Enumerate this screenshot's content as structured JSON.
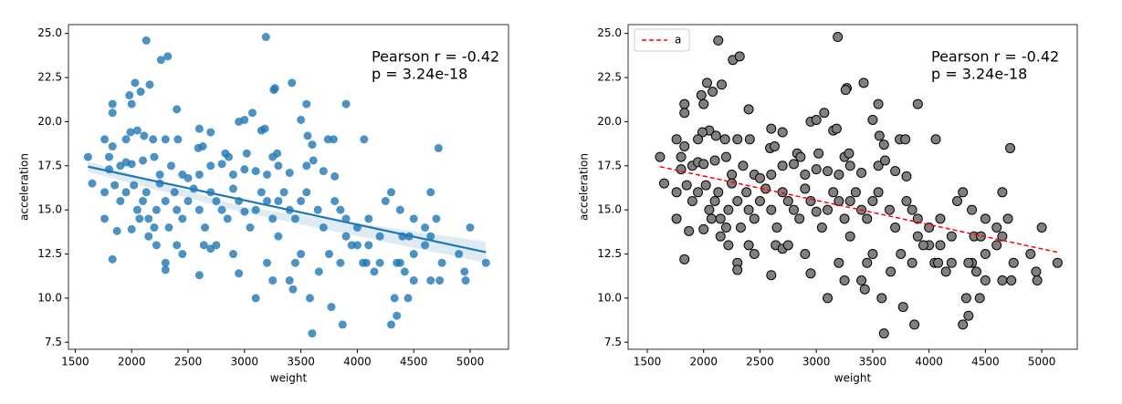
{
  "chart_data": [
    {
      "type": "scatter",
      "xlabel": "weight",
      "ylabel": "acceleration",
      "color": "#1f77b4",
      "edgecolor": "none",
      "alpha": 0.8,
      "fit_color": "#1f77b4",
      "fit_dash": false,
      "ci_color": "#1f77b4",
      "annotation": [
        "Pearson r = -0.42",
        "p = 3.24e-18"
      ],
      "xlim": [
        1440,
        5340
      ],
      "ylim": [
        7.1,
        25.5
      ],
      "xticks": [
        1500,
        2000,
        2500,
        3000,
        3500,
        4000,
        4500,
        5000
      ],
      "yticks": [
        7.5,
        {
          "value": 10,
          "label": "10.0"
        },
        12.5,
        {
          "value": 15,
          "label": "15.0"
        },
        17.5,
        {
          "value": 20,
          "label": "20.0"
        },
        22.5,
        {
          "value": 25,
          "label": "25.0"
        }
      ],
      "x": [
        2130,
        3190,
        2260,
        2320,
        2030,
        2160,
        3270,
        3420,
        3260,
        2080,
        1980,
        1830,
        1830,
        2000,
        3900,
        3550,
        2400,
        3070,
        2950,
        3500,
        3000,
        3150,
        3180,
        2600,
        2700,
        3560,
        2050,
        2110,
        1990,
        1950,
        1760,
        2410,
        2300,
        2190,
        3740,
        3790,
        4060,
        2590,
        2630,
        2830,
        2860,
        3020,
        3250,
        3290,
        3600,
        4720,
        1830,
        1800,
        1900,
        1950,
        2000,
        2100,
        2200,
        2250,
        2350,
        2450,
        2500,
        2600,
        2700,
        2800,
        2900,
        3000,
        3100,
        3200,
        3300,
        3400,
        3550,
        3610,
        3700,
        3800,
        1613,
        1650,
        1760,
        1800,
        1850,
        1900,
        1950,
        2020,
        2050,
        2070,
        2100,
        2130,
        2150,
        2200,
        2220,
        2250,
        2300,
        2330,
        2380,
        2400,
        2450,
        2500,
        2550,
        2600,
        2650,
        2700,
        2750,
        2800,
        2850,
        2900,
        2950,
        3000,
        3050,
        3100,
        3150,
        3200,
        3250,
        3300,
        3350,
        3400,
        3450,
        3500,
        3550,
        3650,
        3700,
        3800,
        3850,
        3900,
        4000,
        4100,
        4250,
        4300,
        4380,
        4500,
        4650,
        4700,
        1760,
        1830,
        1870,
        2000,
        2150,
        2220,
        2300,
        2300,
        2400,
        2450,
        2600,
        2640,
        2700,
        2750,
        2900,
        2950,
        3100,
        3200,
        3250,
        3300,
        3400,
        3430,
        3450,
        3500,
        3580,
        3600,
        3660,
        3750,
        3770,
        3850,
        3870,
        3900,
        4000,
        4050,
        4100,
        4150,
        4200,
        4300,
        4330,
        4350,
        4380,
        4420,
        4450,
        4500,
        4500,
        4600,
        4650,
        4730,
        4750,
        4900,
        4950,
        4960,
        5000,
        5140,
        4200,
        4080,
        3950,
        4350,
        4400,
        4460,
        4600,
        4650
      ],
      "values": [
        24.6,
        24.8,
        23.5,
        23.7,
        22.2,
        22.1,
        21.9,
        22.2,
        21.8,
        21.7,
        21.5,
        21.0,
        20.5,
        21.0,
        21.0,
        21.0,
        20.7,
        20.5,
        20.0,
        20.1,
        20.1,
        19.5,
        19.6,
        19.6,
        19.4,
        19.2,
        19.5,
        19.2,
        19.4,
        19.0,
        19.0,
        19.0,
        19.0,
        19.0,
        19.0,
        19.0,
        19.0,
        18.5,
        18.6,
        18.2,
        18.0,
        18.2,
        18.0,
        18.2,
        18.7,
        18.5,
        18.6,
        18.0,
        17.5,
        17.7,
        17.6,
        17.8,
        18.0,
        17.0,
        17.5,
        17.0,
        16.8,
        17.0,
        17.5,
        17.6,
        17.0,
        17.3,
        17.2,
        17.0,
        17.5,
        17.1,
        17.5,
        17.8,
        17.2,
        16.9,
        18.0,
        16.5,
        16.0,
        17.3,
        16.4,
        15.5,
        16.0,
        16.4,
        15.0,
        14.5,
        15.5,
        16.0,
        14.5,
        14.0,
        15.0,
        16.5,
        15.5,
        14.0,
        16.0,
        15.0,
        14.5,
        15.5,
        16.2,
        15.0,
        14.0,
        16.0,
        15.5,
        15.0,
        14.5,
        16.2,
        15.5,
        14.9,
        14.0,
        15.0,
        16.0,
        15.5,
        14.5,
        15.5,
        16.0,
        15.0,
        14.5,
        15.5,
        16.0,
        15.0,
        14.0,
        15.5,
        15.0,
        14.5,
        14.0,
        14.5,
        15.5,
        16.0,
        15.0,
        14.5,
        16.0,
        14.5,
        14.5,
        12.2,
        13.8,
        13.9,
        13.5,
        13.0,
        12.0,
        11.6,
        13.0,
        12.5,
        11.3,
        13.0,
        12.8,
        13.0,
        12.5,
        11.4,
        10.0,
        12.0,
        11.0,
        13.5,
        11.0,
        10.5,
        12.0,
        12.5,
        10.0,
        8.0,
        11.5,
        12.5,
        9.5,
        12.0,
        8.5,
        13.5,
        13.0,
        12.0,
        13.0,
        11.5,
        12.0,
        8.5,
        10.0,
        9.0,
        12.0,
        11.5,
        10.0,
        11.0,
        12.5,
        13.0,
        11.0,
        11.0,
        12.0,
        12.5,
        11.5,
        11.0,
        14.0,
        12.0,
        13.5,
        12.0,
        13.0,
        12.0,
        13.5,
        13.5,
        14.0,
        13.5
      ],
      "fit_x": [
        1613,
        5140
      ],
      "fit_y": [
        17.45,
        12.6
      ],
      "ci_x": [
        1613,
        3000,
        5140
      ],
      "ci_upper": [
        17.75,
        15.15,
        13.2
      ],
      "ci_lower": [
        17.15,
        14.85,
        12.0
      ]
    },
    {
      "type": "scatter",
      "xlabel": "weight",
      "ylabel": "acceleration",
      "color": "#808080",
      "edgecolor": "#000000",
      "alpha": 1,
      "fit_color": "#ff0000",
      "fit_dash": true,
      "fit_name": "a",
      "legend": "upper left",
      "annotation": [
        "Pearson r = -0.42",
        "p = 3.24e-18"
      ],
      "xlim": [
        1330,
        5315
      ],
      "ylim": [
        7.1,
        25.5
      ],
      "xticks": [
        1500,
        2000,
        2500,
        3000,
        3500,
        4000,
        4500,
        5000
      ],
      "yticks": [
        7.5,
        {
          "value": 10,
          "label": "10.0"
        },
        12.5,
        {
          "value": 15,
          "label": "15.0"
        },
        17.5,
        {
          "value": 20,
          "label": "20.0"
        },
        22.5,
        {
          "value": 25,
          "label": "25.0"
        }
      ],
      "x": [
        2130,
        3190,
        2260,
        2320,
        2030,
        2160,
        3270,
        3420,
        3260,
        2080,
        1980,
        1830,
        1830,
        2000,
        3900,
        3550,
        2400,
        3070,
        2950,
        3500,
        3000,
        3150,
        3180,
        2600,
        2700,
        3560,
        2050,
        2110,
        1990,
        1950,
        1760,
        2410,
        2300,
        2190,
        3740,
        3790,
        4060,
        2590,
        2630,
        2830,
        2860,
        3020,
        3250,
        3290,
        3600,
        4720,
        1830,
        1800,
        1900,
        1950,
        2000,
        2100,
        2200,
        2250,
        2350,
        2450,
        2500,
        2600,
        2700,
        2800,
        2900,
        3000,
        3100,
        3200,
        3300,
        3400,
        3550,
        3610,
        3700,
        3800,
        1613,
        1650,
        1760,
        1800,
        1850,
        1900,
        1950,
        2020,
        2050,
        2070,
        2100,
        2130,
        2150,
        2200,
        2220,
        2250,
        2300,
        2330,
        2380,
        2400,
        2450,
        2500,
        2550,
        2600,
        2650,
        2700,
        2750,
        2800,
        2850,
        2900,
        2950,
        3000,
        3050,
        3100,
        3150,
        3200,
        3250,
        3300,
        3350,
        3400,
        3450,
        3500,
        3550,
        3650,
        3700,
        3800,
        3850,
        3900,
        4000,
        4100,
        4250,
        4300,
        4380,
        4500,
        4650,
        4700,
        1760,
        1830,
        1870,
        2000,
        2150,
        2220,
        2300,
        2300,
        2400,
        2450,
        2600,
        2640,
        2700,
        2750,
        2900,
        2950,
        3100,
        3200,
        3250,
        3300,
        3400,
        3430,
        3450,
        3500,
        3580,
        3600,
        3660,
        3750,
        3770,
        3850,
        3870,
        3900,
        4000,
        4050,
        4100,
        4150,
        4200,
        4300,
        4330,
        4350,
        4380,
        4420,
        4450,
        4500,
        4500,
        4600,
        4650,
        4730,
        4750,
        4900,
        4950,
        4960,
        5000,
        5140,
        4200,
        4080,
        3950,
        4350,
        4400,
        4460,
        4600,
        4650
      ],
      "values": [
        24.6,
        24.8,
        23.5,
        23.7,
        22.2,
        22.1,
        21.9,
        22.2,
        21.8,
        21.7,
        21.5,
        21.0,
        20.5,
        21.0,
        21.0,
        21.0,
        20.7,
        20.5,
        20.0,
        20.1,
        20.1,
        19.5,
        19.6,
        19.6,
        19.4,
        19.2,
        19.5,
        19.2,
        19.4,
        19.0,
        19.0,
        19.0,
        19.0,
        19.0,
        19.0,
        19.0,
        19.0,
        18.5,
        18.6,
        18.2,
        18.0,
        18.2,
        18.0,
        18.2,
        18.7,
        18.5,
        18.6,
        18.0,
        17.5,
        17.7,
        17.6,
        17.8,
        18.0,
        17.0,
        17.5,
        17.0,
        16.8,
        17.0,
        17.5,
        17.6,
        17.0,
        17.3,
        17.2,
        17.0,
        17.5,
        17.1,
        17.5,
        17.8,
        17.2,
        16.9,
        18.0,
        16.5,
        16.0,
        17.3,
        16.4,
        15.5,
        16.0,
        16.4,
        15.0,
        14.5,
        15.5,
        16.0,
        14.5,
        14.0,
        15.0,
        16.5,
        15.5,
        14.0,
        16.0,
        15.0,
        14.5,
        15.5,
        16.2,
        15.0,
        14.0,
        16.0,
        15.5,
        15.0,
        14.5,
        16.2,
        15.5,
        14.9,
        14.0,
        15.0,
        16.0,
        15.5,
        14.5,
        15.5,
        16.0,
        15.0,
        14.5,
        15.5,
        16.0,
        15.0,
        14.0,
        15.5,
        15.0,
        14.5,
        14.0,
        14.5,
        15.5,
        16.0,
        15.0,
        14.5,
        16.0,
        14.5,
        14.5,
        12.2,
        13.8,
        13.9,
        13.5,
        13.0,
        12.0,
        11.6,
        13.0,
        12.5,
        11.3,
        13.0,
        12.8,
        13.0,
        12.5,
        11.4,
        10.0,
        12.0,
        11.0,
        13.5,
        11.0,
        10.5,
        12.0,
        12.5,
        10.0,
        8.0,
        11.5,
        12.5,
        9.5,
        12.0,
        8.5,
        13.5,
        13.0,
        12.0,
        13.0,
        11.5,
        12.0,
        8.5,
        10.0,
        9.0,
        12.0,
        11.5,
        10.0,
        11.0,
        12.5,
        13.0,
        11.0,
        11.0,
        12.0,
        12.5,
        11.5,
        11.0,
        14.0,
        12.0,
        13.5,
        12.0,
        13.0,
        12.0,
        13.5,
        13.5,
        14.0,
        13.5
      ],
      "fit_x": [
        1613,
        5140
      ],
      "fit_y": [
        17.45,
        12.6
      ]
    }
  ]
}
